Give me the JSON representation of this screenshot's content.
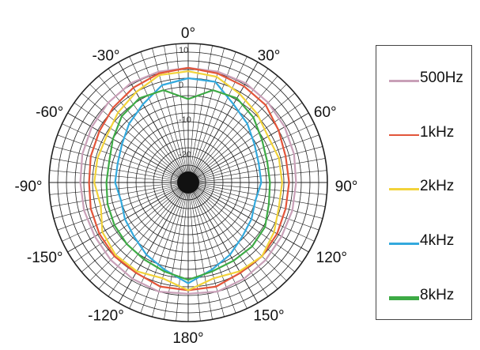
{
  "chart_data": {
    "type": "polar-line",
    "angle_labels": [
      "0°",
      "30°",
      "60°",
      "90°",
      "120°",
      "150°",
      "180°",
      "-120°",
      "-150°",
      "-90°",
      "-60°",
      "-30°"
    ],
    "ring_labels": [
      "10",
      "0",
      "-10",
      "-20"
    ],
    "r_range": [
      -30,
      10
    ],
    "angles_deg": [
      0,
      15,
      30,
      45,
      60,
      75,
      90,
      105,
      120,
      135,
      150,
      165,
      180,
      195,
      210,
      225,
      240,
      255,
      270,
      285,
      300,
      315,
      330,
      345
    ],
    "series": [
      {
        "name": "500Hz",
        "color": "#c9a0b8",
        "width": 2.2,
        "values": [
          3,
          3,
          3,
          2.5,
          2,
          1.5,
          1,
          1,
          1,
          1.5,
          2,
          2.5,
          2,
          2.5,
          2,
          1.5,
          1,
          1,
          1,
          1.5,
          2,
          2.5,
          3,
          3
        ]
      },
      {
        "name": "1kHz",
        "color": "#e2553a",
        "width": 2.2,
        "values": [
          3,
          2.5,
          2,
          1.5,
          0,
          -1,
          -1,
          -1,
          -0.5,
          0,
          0,
          1,
          1,
          1,
          0,
          0,
          -0.5,
          -1,
          -1.5,
          -1,
          -0.5,
          0.5,
          1.5,
          2.5
        ]
      },
      {
        "name": "2kHz",
        "color": "#f2d33b",
        "width": 2.2,
        "values": [
          2,
          1.5,
          -0.5,
          -2,
          -3.5,
          -3,
          -3,
          -3,
          -1.5,
          0,
          -0.5,
          -1.5,
          1,
          -1.5,
          -0.5,
          -0.5,
          -1.5,
          -4,
          -3,
          -3,
          -3,
          -1.5,
          0,
          2
        ]
      },
      {
        "name": "4kHz",
        "color": "#33a9dd",
        "width": 2.2,
        "values": [
          0,
          0,
          -4,
          -6,
          -8,
          -9,
          -9,
          -10,
          -9,
          -8,
          -6,
          -4,
          -1,
          -4,
          -6,
          -8,
          -9,
          -10,
          -9,
          -9,
          -8,
          -6,
          -4,
          -1
        ]
      },
      {
        "name": "8kHz",
        "color": "#3daa45",
        "width": 2.2,
        "values": [
          -6,
          -2.5,
          -2,
          -3.5,
          -5.5,
          -6.5,
          -6.5,
          -6,
          -4.5,
          -4,
          -4,
          -3.5,
          -2,
          -3.5,
          -4.5,
          -5,
          -5.5,
          -6,
          -6.5,
          -6.5,
          -5,
          -3,
          -2,
          -2.5
        ]
      }
    ]
  },
  "legend": {
    "items": [
      {
        "label": "500Hz",
        "color": "#c9a0b8",
        "thickness": 3
      },
      {
        "label": "1kHz",
        "color": "#e2553a",
        "thickness": 2
      },
      {
        "label": "2kHz",
        "color": "#f2d33b",
        "thickness": 3
      },
      {
        "label": "4kHz",
        "color": "#33a9dd",
        "thickness": 3
      },
      {
        "label": "8kHz",
        "color": "#3daa45",
        "thickness": 5
      }
    ]
  }
}
